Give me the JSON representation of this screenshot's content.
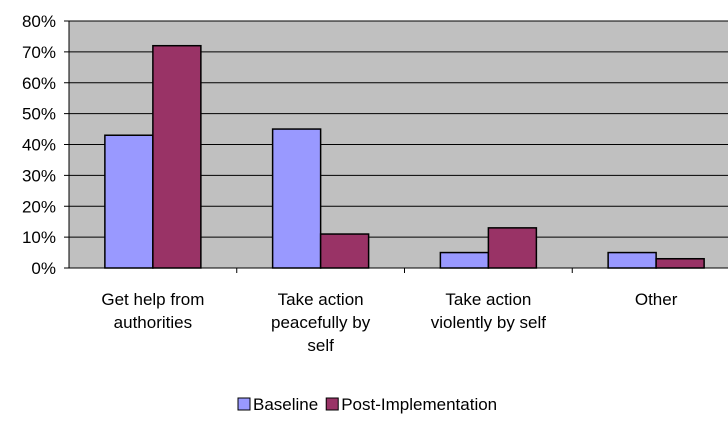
{
  "chart_data": {
    "type": "bar",
    "categories": [
      [
        "Get help from",
        "authorities"
      ],
      [
        "Take action",
        "peacefully by",
        "self"
      ],
      [
        "Take action",
        "violently by self"
      ],
      [
        "Other"
      ]
    ],
    "series": [
      {
        "name": "Baseline",
        "color": "#9999ff",
        "values": [
          43,
          45,
          5,
          5
        ]
      },
      {
        "name": "Post-Implementation",
        "color": "#993366",
        "values": [
          72,
          11,
          13,
          3
        ]
      }
    ],
    "y_ticks": [
      "0%",
      "10%",
      "20%",
      "30%",
      "40%",
      "50%",
      "60%",
      "70%",
      "80%"
    ],
    "ylim": [
      0,
      80
    ],
    "y_unit": "%",
    "grid": true,
    "plot_background": "#c0c0c0",
    "legend_position": "bottom"
  }
}
